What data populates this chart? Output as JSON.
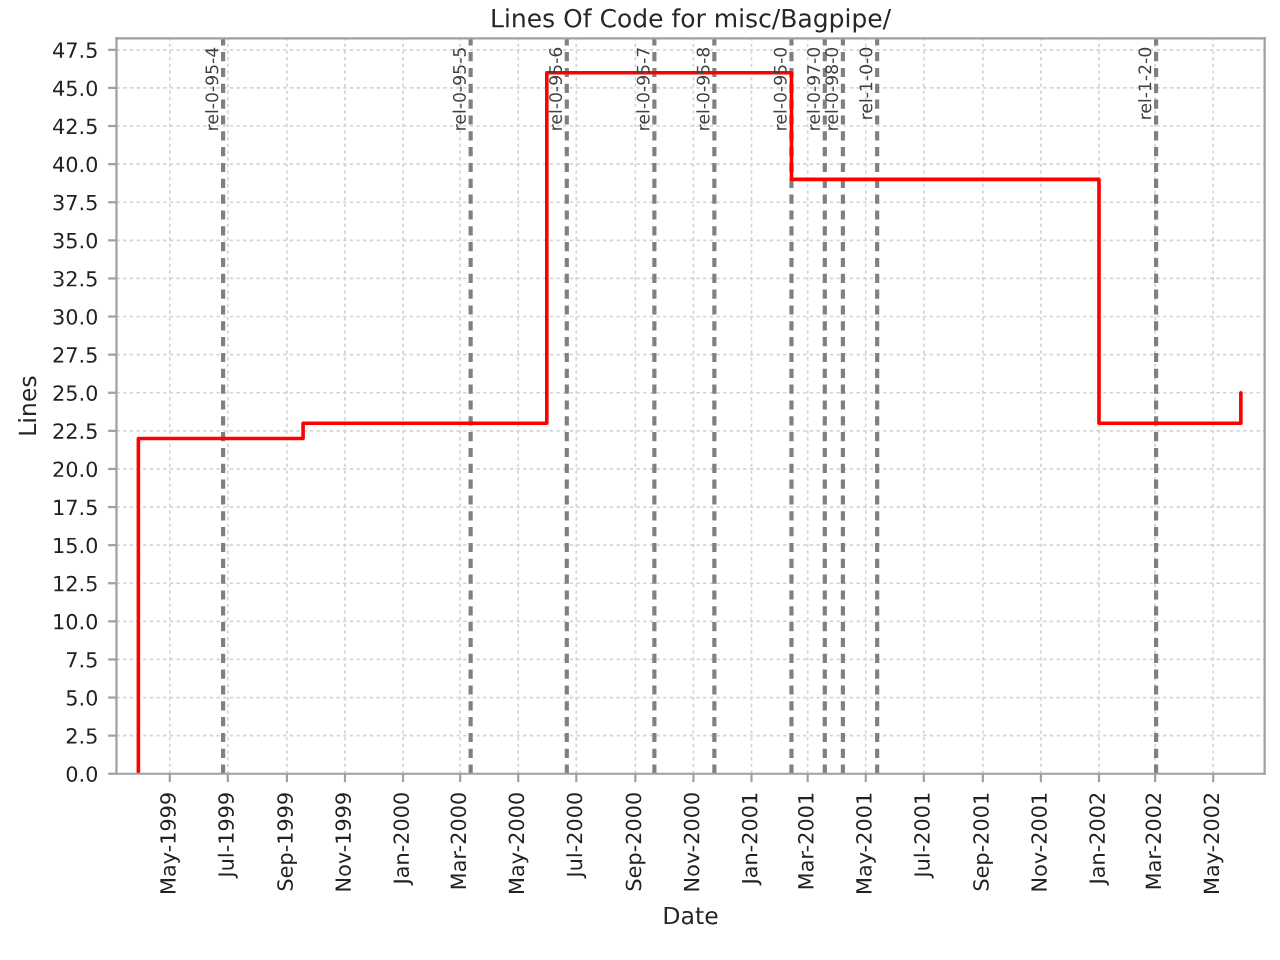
{
  "chart_data": {
    "type": "step",
    "title": "Lines Of Code for misc/Bagpipe/",
    "xlabel": "Date",
    "ylabel": "Lines",
    "series": [
      {
        "color": "#ff0000",
        "x": [
          "1999-03-29",
          "1999-03-29",
          "1999-09-18",
          "2000-05-31",
          "2001-02-12",
          "2002-01-01",
          "2002-05-30"
        ],
        "values": [
          0,
          22,
          23,
          46,
          39,
          23,
          25
        ]
      }
    ],
    "xlim": [
      "1999-03-06",
      "2002-06-24"
    ],
    "xticks": [
      {
        "value": "1999-05",
        "label": "May-1999"
      },
      {
        "value": "1999-07",
        "label": "Jul-1999"
      },
      {
        "value": "1999-09",
        "label": "Sep-1999"
      },
      {
        "value": "1999-11",
        "label": "Nov-1999"
      },
      {
        "value": "2000-01",
        "label": "Jan-2000"
      },
      {
        "value": "2000-03",
        "label": "Mar-2000"
      },
      {
        "value": "2000-05",
        "label": "May-2000"
      },
      {
        "value": "2000-07",
        "label": "Jul-2000"
      },
      {
        "value": "2000-09",
        "label": "Sep-2000"
      },
      {
        "value": "2000-11",
        "label": "Nov-2000"
      },
      {
        "value": "2001-01",
        "label": "Jan-2001"
      },
      {
        "value": "2001-03",
        "label": "Mar-2001"
      },
      {
        "value": "2001-05",
        "label": "May-2001"
      },
      {
        "value": "2001-07",
        "label": "Jul-2001"
      },
      {
        "value": "2001-09",
        "label": "Sep-2001"
      },
      {
        "value": "2001-11",
        "label": "Nov-2001"
      },
      {
        "value": "2002-01",
        "label": "Jan-2002"
      },
      {
        "value": "2002-03",
        "label": "Mar-2002"
      },
      {
        "value": "2002-05",
        "label": "May-2002"
      }
    ],
    "ylim": [
      0,
      48.25
    ],
    "yticks": [
      {
        "value": 0,
        "label": "0.0"
      },
      2.5,
      {
        "value": 5,
        "label": "5.0"
      },
      7.5,
      {
        "value": 10,
        "label": "10.0"
      },
      12.5,
      {
        "value": 15,
        "label": "15.0"
      },
      17.5,
      {
        "value": 20,
        "label": "20.0"
      },
      22.5,
      {
        "value": 25,
        "label": "25.0"
      },
      27.5,
      {
        "value": 30,
        "label": "30.0"
      },
      32.5,
      {
        "value": 35,
        "label": "35.0"
      },
      37.5,
      {
        "value": 40,
        "label": "40.0"
      },
      42.5,
      {
        "value": 45,
        "label": "45.0"
      },
      47.5
    ],
    "ref_lines": [
      {
        "axis": "x",
        "value": "1999-06-26",
        "label": "rel-0-95-4",
        "color": "#808080",
        "line_style": "dashed"
      },
      {
        "axis": "x",
        "value": "2000-03-12",
        "label": "rel-0-95-5",
        "color": "#808080",
        "line_style": "dashed"
      },
      {
        "axis": "x",
        "value": "2000-06-21",
        "label": "rel-0-95-6",
        "color": "#808080",
        "line_style": "dashed"
      },
      {
        "axis": "x",
        "value": "2000-09-21",
        "label": "rel-0-95-7",
        "color": "#808080",
        "line_style": "dashed"
      },
      {
        "axis": "x",
        "value": "2000-11-23",
        "label": "rel-0-95-8",
        "color": "#808080",
        "line_style": "dashed"
      },
      {
        "axis": "x",
        "value": "2001-02-12",
        "label": "rel-0-95-0",
        "color": "#808080",
        "line_style": "dashed"
      },
      {
        "axis": "x",
        "value": "2001-03-19",
        "label": "rel-0-97-0",
        "color": "#808080",
        "line_style": "dashed"
      },
      {
        "axis": "x",
        "value": "2001-04-07",
        "label": "rel-0-98-0",
        "color": "#808080",
        "line_style": "dashed"
      },
      {
        "axis": "x",
        "value": "2001-05-13",
        "label": "rel-1-0-0",
        "color": "#808080",
        "line_style": "dashed"
      },
      {
        "axis": "x",
        "value": "2002-03-02",
        "label": "rel-1-2-0",
        "color": "#808080",
        "line_style": "dashed"
      }
    ],
    "grid": true
  }
}
